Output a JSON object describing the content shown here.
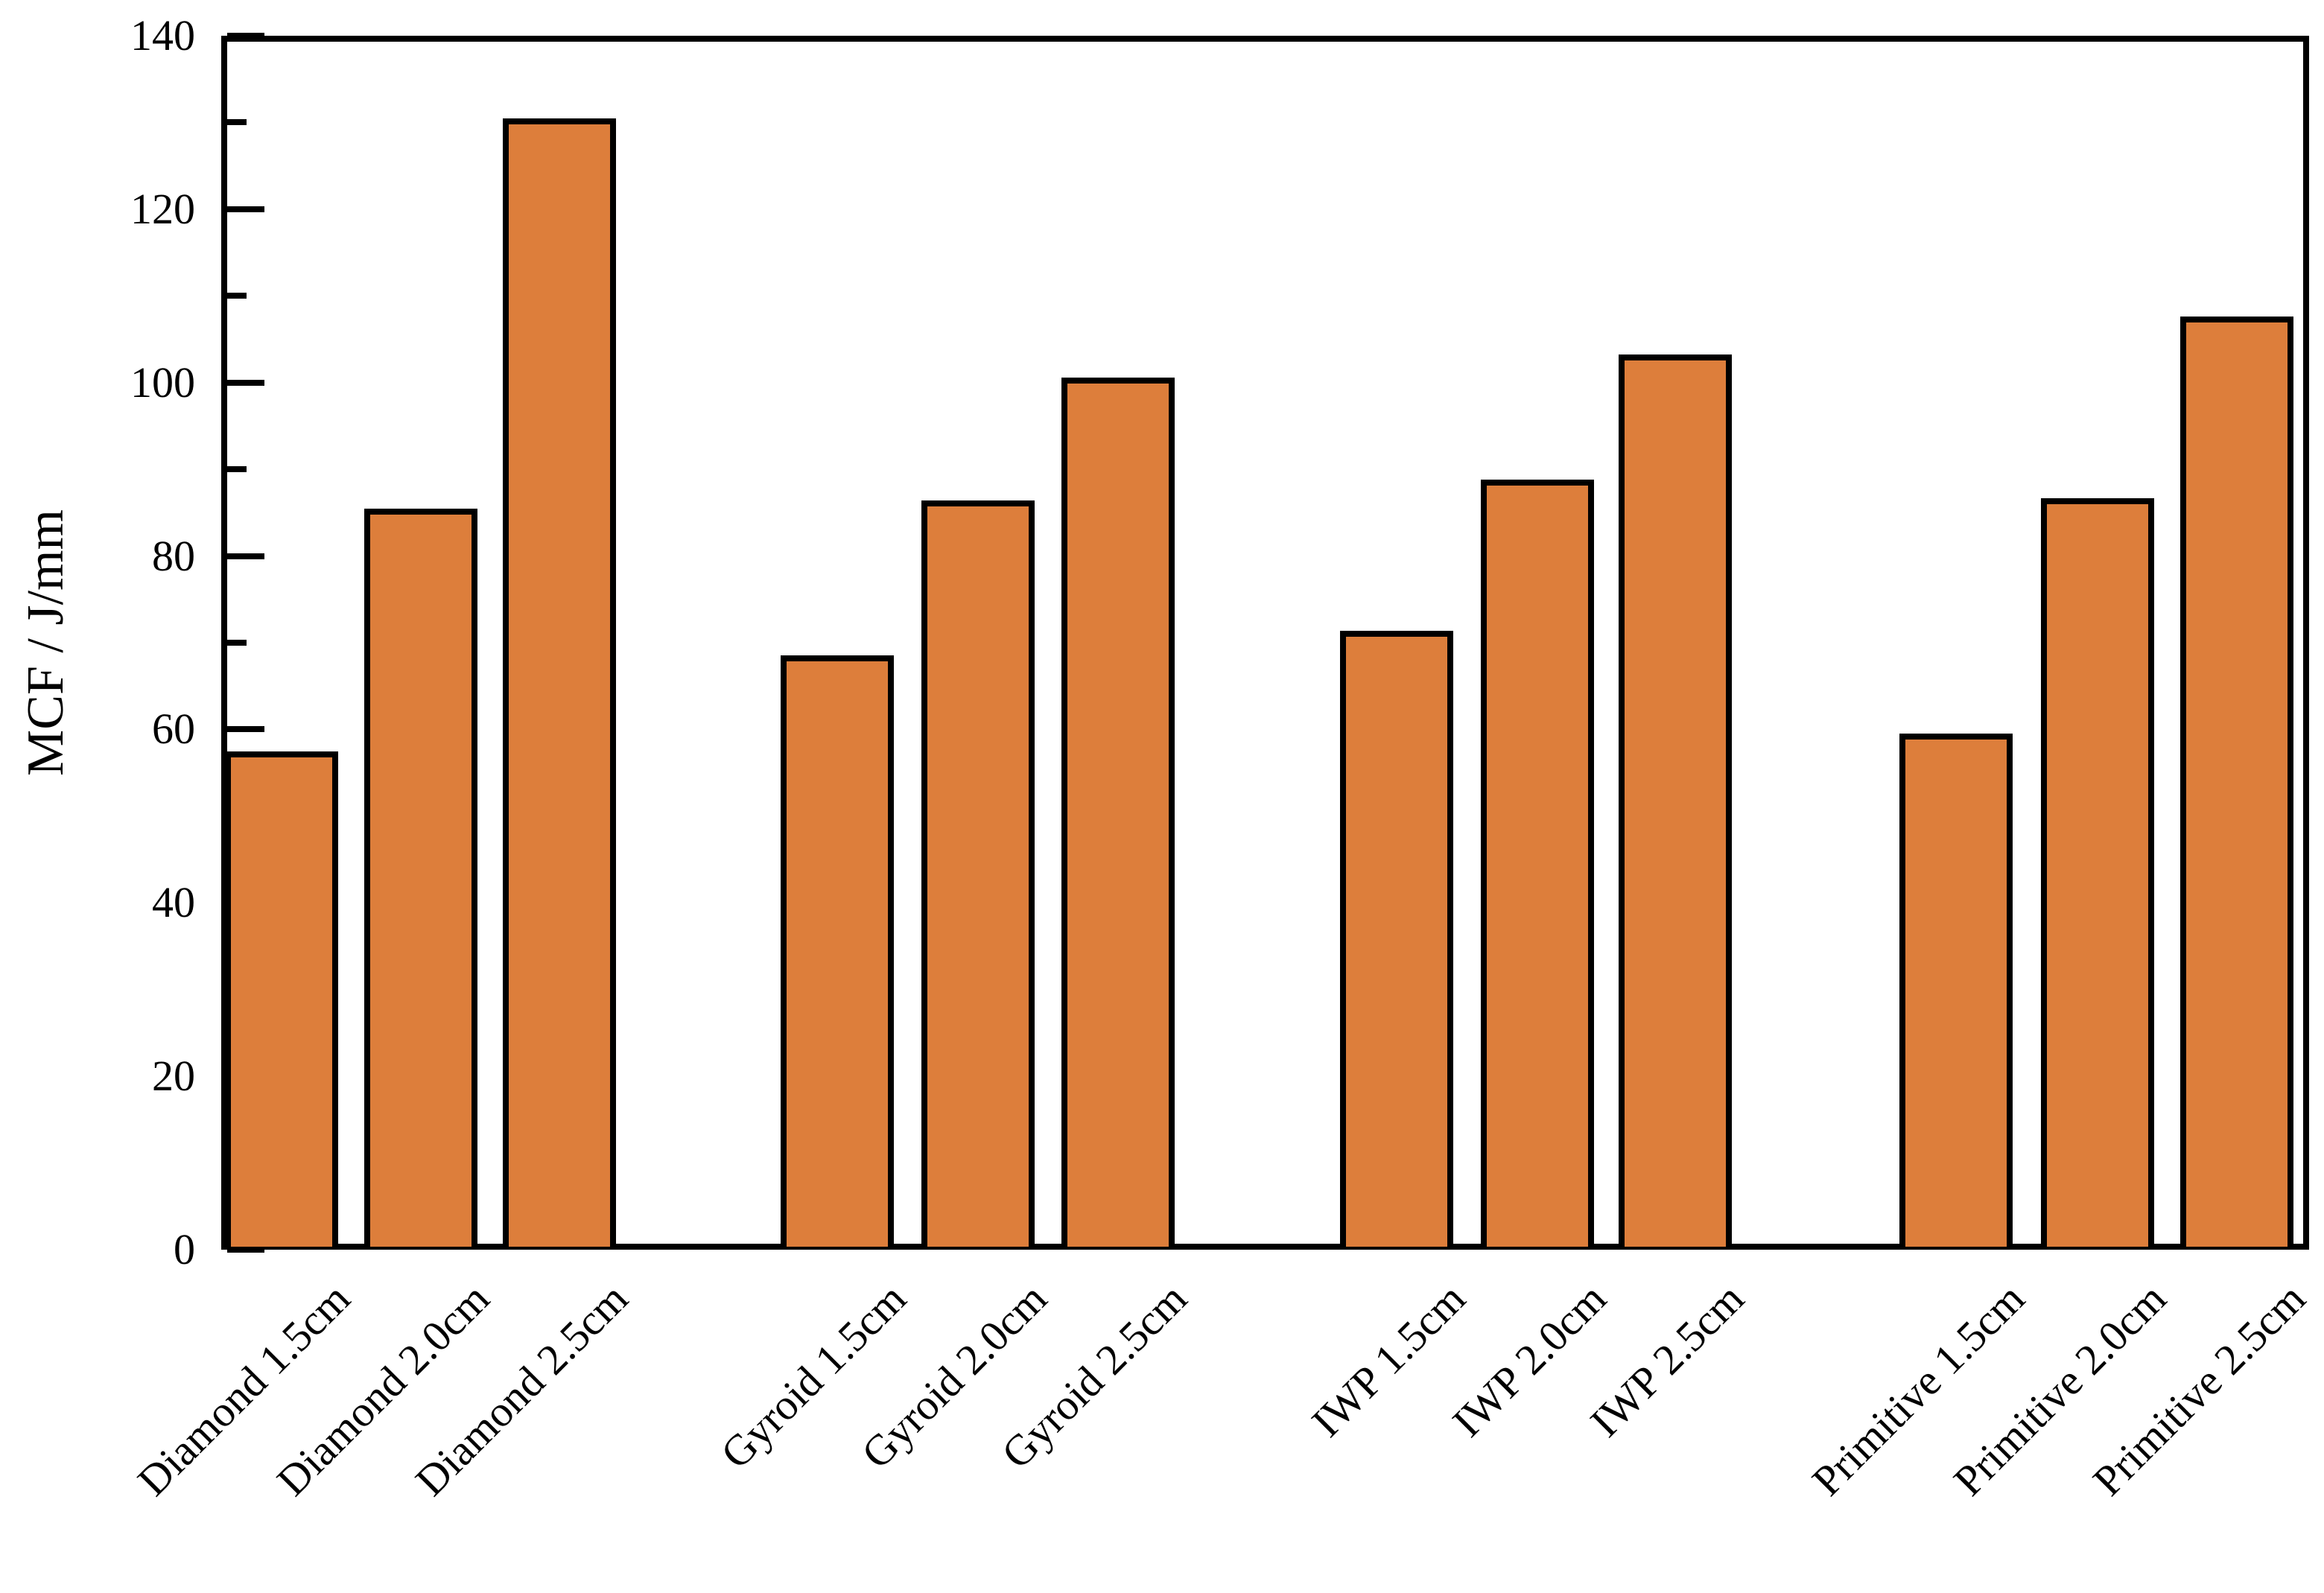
{
  "chart_data": {
    "type": "bar",
    "title": "",
    "xlabel": "",
    "ylabel": "MCF / J/mm",
    "ylim": [
      0,
      140
    ],
    "ytick_major_step": 20,
    "ytick_minor_step": 10,
    "ytick_labels": [
      "0",
      "20",
      "40",
      "60",
      "80",
      "100",
      "120",
      "140"
    ],
    "grid": false,
    "legend_position": "none",
    "bar_fill_color": "#DD7E3B",
    "bar_edge_color": "#000000",
    "axis_color": "#000000",
    "categories": [
      "Diamond 1.5cm",
      "Diamond 2.0cm",
      "Diamond 2.5cm",
      "Gyroid 1.5cm",
      "Gyroid 2.0cm",
      "Gyroid 2.5cm",
      "IWP 1.5cm",
      "IWP 2.0cm",
      "IWP 2.5cm",
      "Primitive 1.5cm",
      "Primitive 2.0cm",
      "Primitive 2.5cm"
    ],
    "values": [
      57.5,
      85.5,
      130.5,
      68.5,
      86.4,
      100.6,
      71.4,
      88.8,
      103.2,
      59.5,
      86.7,
      107.6
    ],
    "groups": [
      {
        "label": "Diamond",
        "sizes": [
          "1.5cm",
          "2.0cm",
          "2.5cm"
        ],
        "values": [
          57.5,
          85.5,
          130.5
        ]
      },
      {
        "label": "Gyroid",
        "sizes": [
          "1.5cm",
          "2.0cm",
          "2.5cm"
        ],
        "values": [
          68.5,
          86.4,
          100.6
        ]
      },
      {
        "label": "IWP",
        "sizes": [
          "1.5cm",
          "2.0cm",
          "2.5cm"
        ],
        "values": [
          71.4,
          88.8,
          103.2
        ]
      },
      {
        "label": "Primitive",
        "sizes": [
          "1.5cm",
          "2.0cm",
          "2.5cm"
        ],
        "values": [
          59.5,
          86.7,
          107.6
        ]
      }
    ]
  }
}
